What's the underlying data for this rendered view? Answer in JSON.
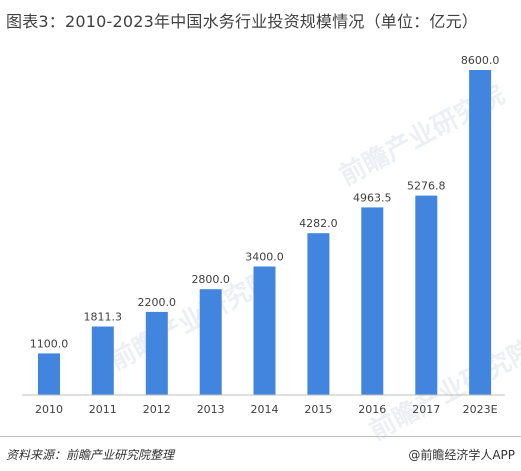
{
  "title": "图表3：2010-2023年中国水务行业投资规模情况（单位：亿元）",
  "source": "资料来源：前瞻产业研究院整理",
  "brand": "@前瞻经济学人APP",
  "watermark": "前瞻产业研究院",
  "colors": {
    "bar": "#4285de",
    "axis": "#bfbfbf",
    "text": "#404040"
  },
  "chart_data": {
    "type": "bar",
    "categories": [
      "2010",
      "2011",
      "2012",
      "2013",
      "2014",
      "2015",
      "2016",
      "2017",
      "2023E"
    ],
    "values": [
      1100.0,
      1811.3,
      2200.0,
      2800.0,
      3400.0,
      4282.0,
      4963.5,
      5276.8,
      8600.0
    ],
    "value_labels": [
      "1100.0",
      "1811.3",
      "2200.0",
      "2800.0",
      "3400.0",
      "4282.0",
      "4963.5",
      "5276.8",
      "8600.0"
    ],
    "ylim": [
      0,
      8600
    ]
  }
}
